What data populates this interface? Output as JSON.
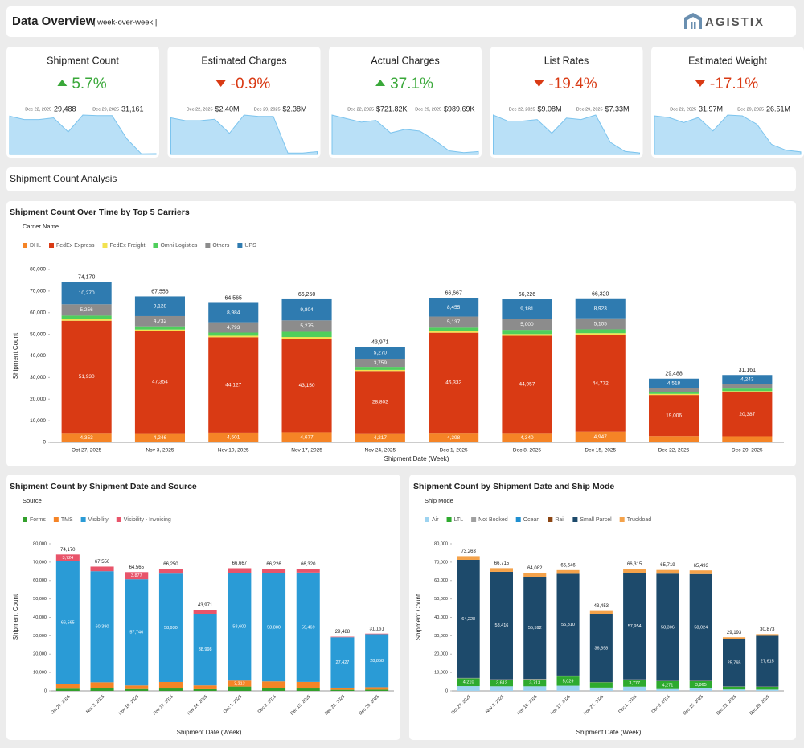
{
  "header": {
    "title": "Data Overview",
    "subtitle": "| week-over-week |",
    "logo": "AGISTIX"
  },
  "kpis": [
    {
      "title": "Shipment Count",
      "direction": "up",
      "change": "5.7%",
      "date_a": "Dec 22, 2025",
      "value_a": "29,488",
      "date_b": "Dec 29, 2025",
      "value_b": "31,161",
      "sparkline": [
        68000,
        62000,
        62000,
        65000,
        40000,
        70000,
        69000,
        69000,
        28000,
        1000,
        1500
      ]
    },
    {
      "title": "Estimated Charges",
      "direction": "down",
      "change": "-0.9%",
      "date_a": "Dec 22, 2025",
      "value_a": "$2.40M",
      "date_b": "Dec 29, 2025",
      "value_b": "$2.38M",
      "sparkline": [
        2.6,
        2.4,
        2.4,
        2.5,
        1.5,
        2.8,
        2.7,
        2.7,
        0.1,
        0.1,
        0.2
      ]
    },
    {
      "title": "Actual Charges",
      "direction": "up",
      "change": "37.1%",
      "date_a": "Dec 22, 2025",
      "value_a": "$721.82K",
      "date_b": "Dec 29, 2025",
      "value_b": "$989.69K",
      "sparkline": [
        1100,
        1000,
        900,
        950,
        600,
        700,
        650,
        400,
        100,
        50,
        80
      ]
    },
    {
      "title": "List Rates",
      "direction": "down",
      "change": "-19.4%",
      "date_a": "Dec 22, 2025",
      "value_a": "$9.08M",
      "date_b": "Dec 29, 2025",
      "value_b": "$7.33M",
      "sparkline": [
        13,
        11,
        11,
        11.5,
        7,
        12,
        11.5,
        13,
        4,
        1,
        0.5
      ]
    },
    {
      "title": "Estimated Weight",
      "direction": "down",
      "change": "-17.1%",
      "date_a": "Dec 22, 2025",
      "value_a": "31.97M",
      "date_b": "Dec 29, 2025",
      "value_b": "26.51M",
      "sparkline": [
        46,
        44,
        38,
        44,
        28,
        47,
        46,
        36,
        12,
        5,
        3
      ]
    }
  ],
  "section": {
    "title": "Shipment Count Analysis"
  },
  "chart_data": [
    {
      "type": "bar",
      "stacked": true,
      "title": "Shipment Count Over Time by Top 5 Carriers",
      "legend_title": "Carrier Name",
      "x_label": "Shipment Date (Week)",
      "y_label": "Shipment Count",
      "grid": false,
      "categories": [
        "Oct 27, 2025",
        "Nov 3, 2025",
        "Nov 10, 2025",
        "Nov 17, 2025",
        "Nov 24, 2025",
        "Dec 1, 2025",
        "Dec 8, 2025",
        "Dec 15, 2025",
        "Dec 22, 2025",
        "Dec 29, 2025"
      ],
      "ylim": [
        0,
        80000
      ],
      "yticks": [
        0,
        {
          "value": 10000,
          "label": "10,000"
        },
        {
          "value": 20000,
          "label": "20,000"
        },
        {
          "value": 30000,
          "label": "30,000"
        },
        {
          "value": 40000,
          "label": "40,000"
        },
        {
          "value": 50000,
          "label": "50,000"
        },
        {
          "value": 60000,
          "label": "60,000"
        },
        {
          "value": 70000,
          "label": "70,000"
        },
        {
          "value": 80000,
          "label": "80,000"
        }
      ],
      "series": [
        {
          "name": "DHL",
          "color": "#f58426",
          "values": [
            4353,
            4246,
            4501,
            4677,
            4217,
            4398,
            4340,
            4947,
            2900,
            2800
          ],
          "value_labels": [
            "4,353",
            "4,246",
            "4,501",
            "4,677",
            "4,217",
            "4,398",
            "4,340",
            "4,947",
            null,
            null
          ]
        },
        {
          "name": "FedEx Express",
          "color": "#d93a14",
          "values": [
            51930,
            47354,
            44127,
            43150,
            28802,
            46332,
            44957,
            44772,
            19006,
            20387
          ],
          "value_labels": [
            "51,930",
            "47,354",
            "44,127",
            "43,150",
            "28,802",
            "46,332",
            "44,957",
            "44,772",
            "19,006",
            "20,387"
          ]
        },
        {
          "name": "FedEx Freight",
          "color": "#f2e250",
          "values": [
            700,
            600,
            700,
            900,
            500,
            700,
            800,
            800,
            500,
            500
          ]
        },
        {
          "name": "Omni Logistics",
          "color": "#4fcf5c",
          "values": [
            1661,
            1496,
            1460,
            2444,
            1423,
            1645,
            1948,
            1773,
            1000,
            1200
          ]
        },
        {
          "name": "Others",
          "color": "#8c8c8c",
          "values": [
            5256,
            4732,
            4793,
            5275,
            3759,
            5137,
            5000,
            5105,
            1564,
            2031
          ],
          "value_labels": [
            "5,256",
            "4,732",
            "4,793",
            "5,275",
            "3,759",
            "5,137",
            "5,000",
            "5,105",
            null,
            null
          ]
        },
        {
          "name": "UPS",
          "color": "#2f7bb0",
          "values": [
            10270,
            9128,
            8984,
            9804,
            5270,
            8455,
            9181,
            8923,
            4518,
            4243
          ],
          "value_labels": [
            "10,270",
            "9,128",
            "8,984",
            "9,804",
            "5,270",
            "8,455",
            "9,181",
            "8,923",
            "4,518",
            "4,243"
          ]
        }
      ],
      "total_values": [
        74170,
        67556,
        64565,
        66250,
        43971,
        66667,
        66226,
        66320,
        29488,
        31161
      ],
      "total_value_labels": [
        "74,170",
        "67,556",
        "64,565",
        "66,250",
        "43,971",
        "66,667",
        "66,226",
        "66,320",
        "29,488",
        "31,161"
      ]
    },
    {
      "type": "bar",
      "stacked": true,
      "title": "Shipment Count by Shipment Date and Source",
      "legend_title": "Source",
      "x_label": "Shipment Date (Week)",
      "y_label": "Shipment Count",
      "grid": false,
      "categories": [
        "Oct 27, 2025",
        "Nov 3, 2025",
        "Nov 10, 2025",
        "Nov 17, 2025",
        "Nov 24, 2025",
        "Dec 1, 2025",
        "Dec 8, 2025",
        "Dec 15, 2025",
        "Dec 22, 2025",
        "Dec 29, 2025"
      ],
      "ylim": [
        0,
        80000
      ],
      "yticks": [
        0,
        {
          "value": 10000,
          "label": "10,000"
        },
        {
          "value": 20000,
          "label": "20,000"
        },
        {
          "value": 30000,
          "label": "30,000"
        },
        {
          "value": 40000,
          "label": "40,000"
        },
        {
          "value": 50000,
          "label": "50,000"
        },
        {
          "value": 60000,
          "label": "60,000"
        },
        {
          "value": 70000,
          "label": "70,000"
        },
        {
          "value": 80000,
          "label": "80,000"
        }
      ],
      "series": [
        {
          "name": "Forms",
          "color": "#33a02c",
          "values": [
            1200,
            1400,
            1000,
            1300,
            900,
            2354,
            1400,
            1300,
            600,
            700
          ]
        },
        {
          "name": "TMS",
          "color": "#f58426",
          "values": [
            2681,
            3266,
            1942,
            3520,
            2073,
            3213,
            3746,
            3551,
            1161,
            1303
          ],
          "value_labels": [
            null,
            null,
            null,
            null,
            null,
            "3,213",
            null,
            null,
            null,
            null
          ]
        },
        {
          "name": "Visibility",
          "color": "#2a9bd6",
          "values": [
            66565,
            60390,
            57746,
            58930,
            38998,
            58600,
            58880,
            59469,
            27427,
            28858
          ],
          "value_labels": [
            "66,565",
            "60,390",
            "57,746",
            "58,930",
            "38,998",
            "58,600",
            "58,880",
            "59,469",
            "27,427",
            "28,858"
          ]
        },
        {
          "name": "Visibility - Invoicing",
          "color": "#e8546a",
          "values": [
            3724,
            2500,
            3877,
            2500,
            2000,
            2500,
            2200,
            2000,
            300,
            300
          ],
          "value_labels": [
            "3,724",
            null,
            "3,877",
            null,
            null,
            null,
            null,
            null,
            null,
            null
          ]
        }
      ],
      "total_values": [
        74170,
        67556,
        64565,
        66250,
        43971,
        66667,
        66226,
        66320,
        29488,
        31161
      ],
      "total_value_labels": [
        "74,170",
        "67,556",
        "64,565",
        "66,250",
        "43,971",
        "66,667",
        "66,226",
        "66,320",
        "29,488",
        "31,161"
      ]
    },
    {
      "type": "bar",
      "stacked": true,
      "title": "Shipment Count by Shipment Date and Ship Mode",
      "legend_title": "Ship Mode",
      "x_label": "Shipment Date (Week)",
      "y_label": "Shipment Count",
      "grid": false,
      "categories": [
        "Oct 27, 2025",
        "Nov 3, 2025",
        "Nov 10, 2025",
        "Nov 17, 2025",
        "Nov 24, 2025",
        "Dec 1, 2025",
        "Dec 8, 2025",
        "Dec 15, 2025",
        "Dec 22, 2025",
        "Dec 29, 2025"
      ],
      "ylim": [
        0,
        80000
      ],
      "yticks": [
        0,
        {
          "value": 10000,
          "label": "10,000"
        },
        {
          "value": 20000,
          "label": "20,000"
        },
        {
          "value": 30000,
          "label": "30,000"
        },
        {
          "value": 40000,
          "label": "40,000"
        },
        {
          "value": 50000,
          "label": "50,000"
        },
        {
          "value": 60000,
          "label": "60,000"
        },
        {
          "value": 70000,
          "label": "70,000"
        },
        {
          "value": 80000,
          "label": "80,000"
        }
      ],
      "series": [
        {
          "name": "Air",
          "color": "#9dd3f0",
          "values": [
            2600,
            2500,
            2500,
            2800,
            1800,
            2300,
            1000,
            1400,
            800,
            700
          ]
        },
        {
          "name": "LTL",
          "color": "#2eaa2e",
          "values": [
            4210,
            3612,
            3713,
            5029,
            2800,
            3777,
            4271,
            3865,
            1500,
            1500
          ],
          "value_labels": [
            "4,210",
            "3,612",
            "3,713",
            "5,029",
            null,
            "3,777",
            "4,271",
            "3,865",
            null,
            null
          ]
        },
        {
          "name": "Not Booked",
          "color": "#a0a0a0",
          "values": [
            200,
            150,
            200,
            400,
            100,
            150,
            100,
            150,
            100,
            100
          ]
        },
        {
          "name": "Ocean",
          "color": "#1f8fd0",
          "values": [
            0,
            0,
            0,
            0,
            0,
            0,
            0,
            0,
            0,
            0
          ]
        },
        {
          "name": "Rail",
          "color": "#8b4513",
          "values": [
            25,
            37,
            77,
            107,
            55,
            34,
            42,
            54,
            28,
            58
          ]
        },
        {
          "name": "Small Parcel",
          "color": "#1d4a6b",
          "values": [
            64228,
            58416,
            55592,
            55310,
            36898,
            57954,
            58306,
            58024,
            25765,
            27615
          ],
          "value_labels": [
            "64,228",
            "58,416",
            "55,592",
            "55,310",
            "36,898",
            "57,954",
            "58,306",
            "58,024",
            "25,765",
            "27,615"
          ]
        },
        {
          "name": "Truckload",
          "color": "#f4a24a",
          "values": [
            2000,
            2000,
            2000,
            2000,
            1800,
            2100,
            2000,
            2000,
            1000,
            900
          ]
        }
      ],
      "total_values": [
        73263,
        66715,
        64082,
        65646,
        43453,
        66315,
        65719,
        65493,
        29193,
        30873
      ],
      "total_value_labels": [
        "73,263",
        "66,715",
        "64,082",
        "65,646",
        "43,453",
        "66,315",
        "65,719",
        "65,493",
        "29,193",
        "30,873"
      ]
    }
  ]
}
